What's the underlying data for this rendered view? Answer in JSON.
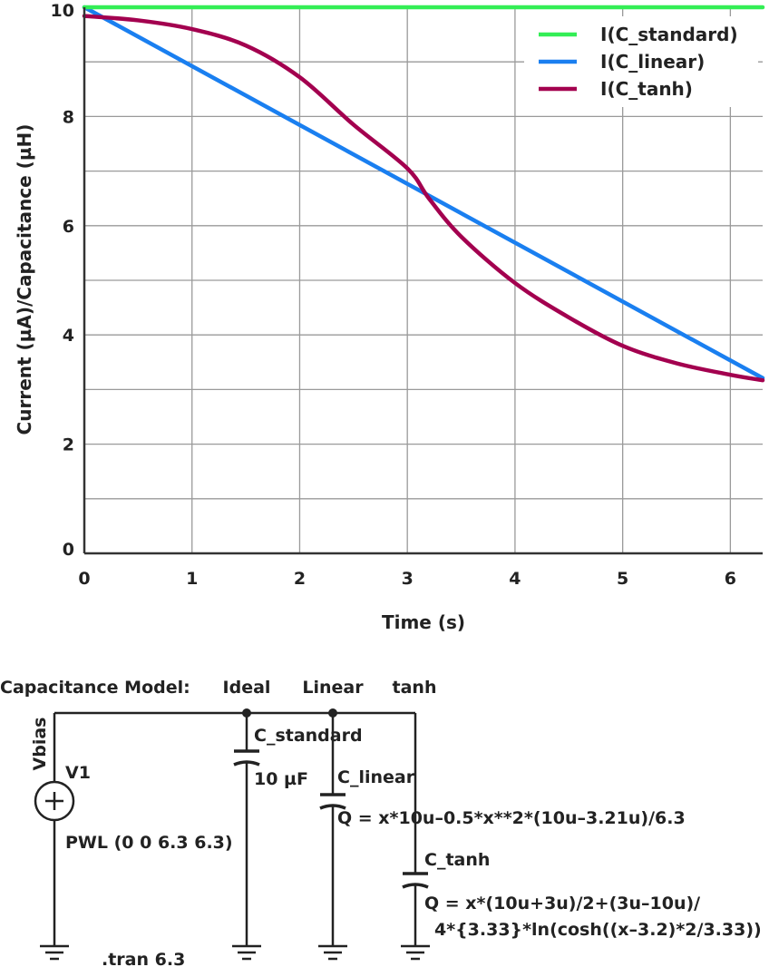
{
  "chart_data": {
    "type": "line",
    "xlabel": "Time (s)",
    "ylabel": "Current (µA)/Capacitance (µH)",
    "xlim": [
      0,
      6.3
    ],
    "ylim": [
      0,
      10
    ],
    "x_ticks": [
      0,
      1,
      2,
      3,
      4,
      5,
      6
    ],
    "y_ticks": [
      0,
      2,
      4,
      6,
      8,
      10
    ],
    "x_tick_labels": [
      "0",
      "1",
      "2",
      "3",
      "4",
      "5",
      "6"
    ],
    "y_tick_labels": [
      "0",
      "2",
      "4",
      "6",
      "8",
      "10"
    ],
    "grid": true,
    "legend_position": "top-right",
    "series": [
      {
        "name": "I(C_standard)",
        "color": "#33ee55",
        "x": [
          0,
          6.3
        ],
        "y": [
          10,
          10
        ]
      },
      {
        "name": "I(C_linear)",
        "color": "#1a7ff0",
        "x": [
          0,
          6.3
        ],
        "y": [
          10,
          3.21
        ]
      },
      {
        "name": "I(C_tanh)",
        "color": "#a3004f",
        "x": [
          0,
          0.5,
          1.0,
          1.5,
          2.0,
          2.5,
          3.0,
          3.2,
          3.5,
          4.0,
          4.5,
          5.0,
          5.5,
          6.0,
          6.3
        ],
        "y": [
          9.84,
          9.76,
          9.6,
          9.3,
          8.72,
          7.85,
          7.05,
          6.5,
          5.8,
          4.95,
          4.32,
          3.8,
          3.48,
          3.27,
          3.17
        ]
      }
    ]
  },
  "schematic": {
    "model_label": "Capacitance Model:",
    "col_ideal": "Ideal",
    "col_linear": "Linear",
    "col_tanh": "tanh",
    "vbias": "Vbias",
    "v1": "V1",
    "pwl": "PWL (0 0 6.3 6.3)",
    "tran": ".tran 6.3",
    "c_standard": "C_standard",
    "c_standard_value": "10 µF",
    "c_linear": "C_linear",
    "c_linear_eq": "Q = x*10u–0.5*x**2*(10u–3.21u)/6.3",
    "c_tanh": "C_tanh",
    "c_tanh_eq1": "Q = x*(10u+3u)/2+(3u–10u)/",
    "c_tanh_eq2": "4*{3.33}*ln(cosh((x–3.2)*2/3.33))"
  }
}
